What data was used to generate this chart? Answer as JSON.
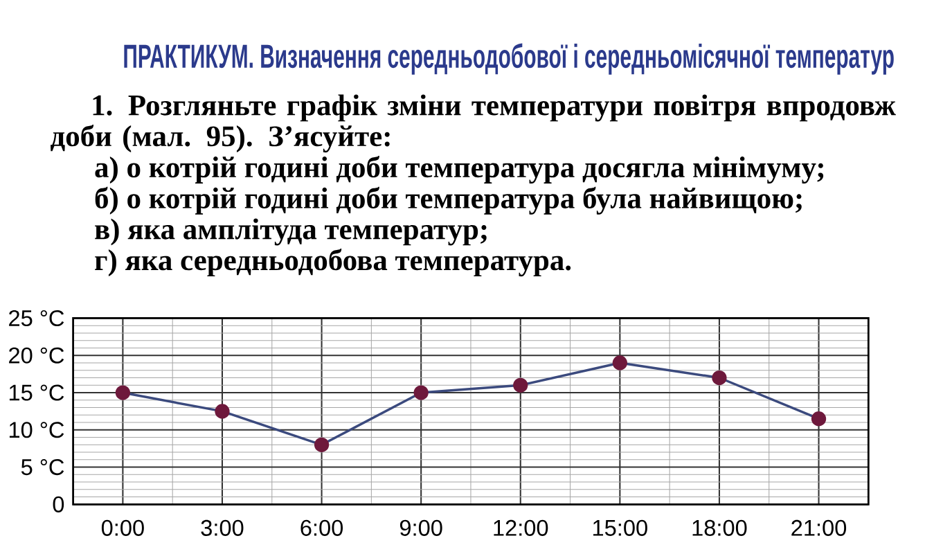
{
  "chart_data": {
    "type": "line",
    "title": "ПРАКТИКУМ. Визначення середньодобової і середньомісячної температур",
    "annotations": [
      "1. Розгляньте графік зміни температури повітря впродовж доби (мал. 95). З’ясуйте:",
      "а) о котрій годині доби температура досягла мінімуму;",
      "б) о котрій годині доби температура була найвищою;",
      "в) яка амплітуда температур;",
      "г) яка середньодобова температура."
    ],
    "x": [
      0,
      3,
      6,
      9,
      12,
      15,
      18,
      21
    ],
    "series": [
      {
        "color": "#3b4a7e",
        "values": [
          15,
          12.5,
          8,
          15,
          16,
          19,
          17,
          11.5
        ]
      }
    ],
    "marker": "circle",
    "line_style": "solid",
    "grid": true,
    "xlim": [
      -1.5,
      22.5
    ],
    "xticks": [
      {
        "value": 0,
        "label": "0:00"
      },
      {
        "value": 3,
        "label": "3:00"
      },
      {
        "value": 6,
        "label": "6:00"
      },
      {
        "value": 9,
        "label": "9:00"
      },
      {
        "value": 12,
        "label": "12:00"
      },
      {
        "value": 15,
        "label": "15:00"
      },
      {
        "value": 18,
        "label": "18:00"
      },
      {
        "value": 21,
        "label": "21:00"
      }
    ],
    "ylim": [
      0,
      25
    ],
    "yticks": [
      0,
      {
        "value": 5,
        "label": "5 °C"
      },
      {
        "value": 10,
        "label": "10 °C"
      },
      {
        "value": 15,
        "label": "15 °C"
      },
      {
        "value": 20,
        "label": "20 °C"
      },
      {
        "value": 25,
        "label": "25 °C"
      }
    ]
  }
}
